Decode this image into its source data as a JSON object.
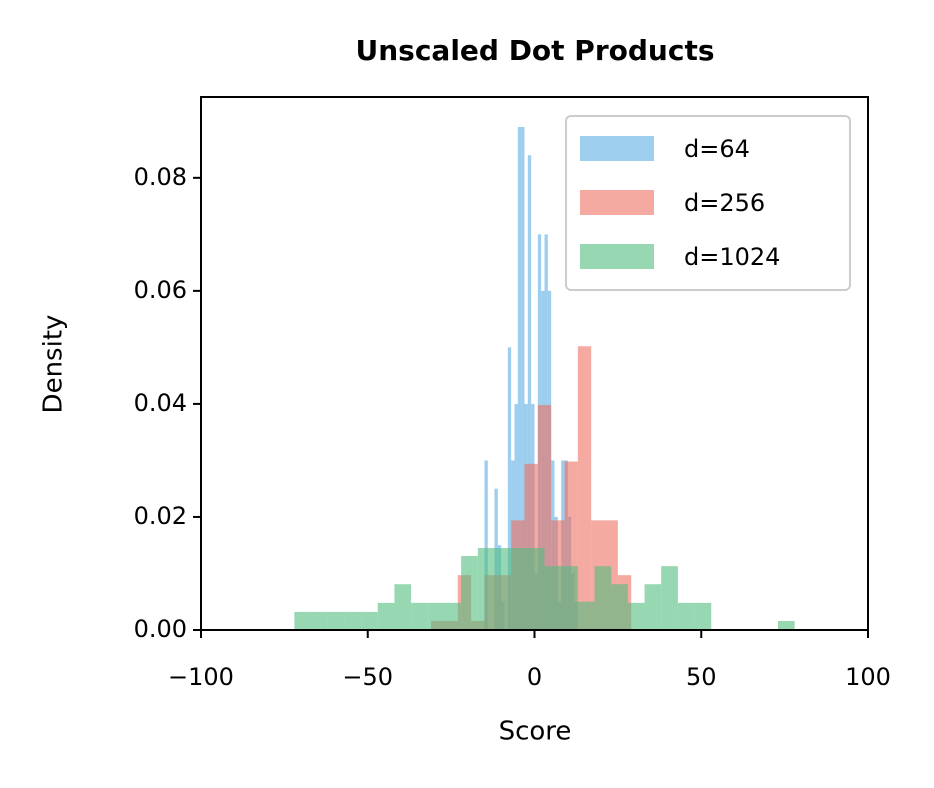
{
  "chart_data": {
    "type": "histogram",
    "title": "Unscaled Dot Products",
    "x_label": "Score",
    "y_label": "Density",
    "xlim": [
      -100,
      100
    ],
    "ylim": [
      0,
      0.0943
    ],
    "xticks": [
      {
        "value": -100,
        "label": "−100"
      },
      {
        "value": -50,
        "label": "−50"
      },
      0,
      50,
      100
    ],
    "yticks": [
      {
        "value": 0,
        "label": "0.00"
      },
      0.02,
      0.04,
      0.06,
      0.08
    ],
    "legend": "upper right",
    "opacity": 0.6,
    "series": [
      {
        "name": "d=64",
        "color": "#5dade2",
        "bins": [
          -15,
          -14,
          -13,
          -12,
          -11,
          -10,
          -9,
          -8,
          -7,
          -6,
          -5,
          -4,
          -3,
          -2,
          -1,
          0,
          1,
          2,
          3,
          4,
          5,
          6,
          7,
          8,
          9,
          10,
          11,
          12,
          13
        ],
        "values": [
          0.03,
          0,
          0,
          0.025,
          0.015,
          0.005,
          0,
          0.05,
          0.03,
          0.04,
          0.089,
          0.089,
          0.04,
          0.084,
          0.04,
          0.01,
          0.07,
          0.06,
          0.07,
          0.06,
          0.03,
          0.02,
          0.005,
          0.03,
          0.03,
          0.02,
          0.01,
          0.005
        ]
      },
      {
        "name": "d=256",
        "color": "#ec7063",
        "bins": [
          -31,
          -27,
          -23,
          -19,
          -15,
          -11,
          -7,
          -3,
          1,
          5,
          9,
          13,
          17,
          21,
          25,
          29
        ],
        "values": [
          0.0016,
          0.0016,
          0.0097,
          0.0016,
          0.0097,
          0.0097,
          0.0194,
          0.0294,
          0.0398,
          0.0194,
          0.0298,
          0.0502,
          0.0194,
          0.0194,
          0.0097
        ]
      },
      {
        "name": "d=1024",
        "color": "#52be80",
        "bins": [
          -72,
          -67,
          -62,
          -57,
          -52,
          -47,
          -42,
          -37,
          -32,
          -27,
          -22,
          -17,
          -12,
          -7,
          -2,
          3,
          8,
          13,
          18,
          23,
          28,
          33,
          38,
          43,
          48,
          53,
          58,
          63,
          68,
          73,
          78
        ],
        "values": [
          0.0032,
          0.0032,
          0.0032,
          0.0032,
          0.0032,
          0.0048,
          0.0081,
          0.0048,
          0.0048,
          0.0048,
          0.0131,
          0.0145,
          0.0145,
          0.0145,
          0.0145,
          0.0113,
          0.0113,
          0.005,
          0.0113,
          0.0081,
          0.0048,
          0.0081,
          0.0113,
          0.0048,
          0.0048,
          0,
          0,
          0,
          0,
          0.0016
        ]
      }
    ]
  }
}
